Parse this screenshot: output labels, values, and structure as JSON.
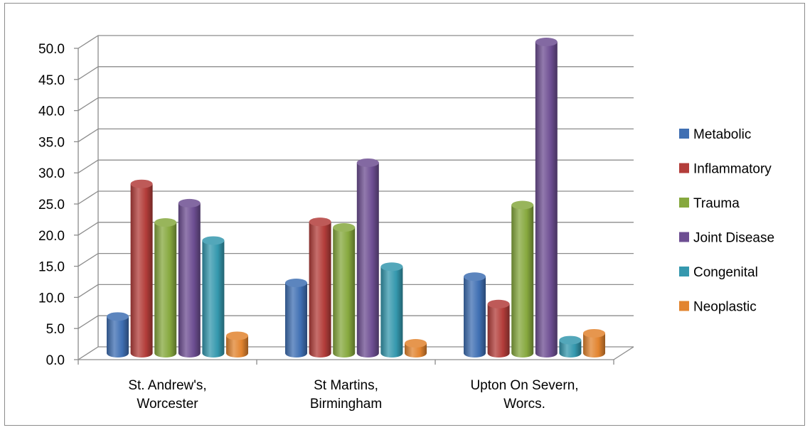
{
  "chart_data": {
    "type": "bar",
    "title": "",
    "xlabel": "",
    "ylabel": "",
    "ylim": [
      0,
      50
    ],
    "y_ticks": [
      "0.0",
      "5.0",
      "10.0",
      "15.0",
      "20.0",
      "25.0",
      "30.0",
      "35.0",
      "40.0",
      "45.0",
      "50.0"
    ],
    "categories": [
      [
        "St. Andrew's,",
        "Worcester"
      ],
      [
        "St Martins,",
        "Birmingham"
      ],
      [
        "Upton On Severn,",
        "Worcs."
      ]
    ],
    "series": [
      {
        "name": "Metabolic",
        "color": "#3f6fb3",
        "values": [
          5.9,
          11.3,
          12.3
        ]
      },
      {
        "name": "Inflammatory",
        "color": "#b33d3a",
        "values": [
          27.2,
          21.1,
          7.9
        ]
      },
      {
        "name": "Trauma",
        "color": "#86a83e",
        "values": [
          21.0,
          20.2,
          23.8
        ]
      },
      {
        "name": "Joint Disease",
        "color": "#6d4e92",
        "values": [
          24.1,
          30.6,
          50.0
        ]
      },
      {
        "name": "Congenital",
        "color": "#3598ae",
        "values": [
          18.1,
          13.9,
          2.1
        ]
      },
      {
        "name": "Neoplastic",
        "color": "#e2842f",
        "values": [
          2.8,
          1.6,
          3.2
        ]
      }
    ],
    "grid": true,
    "legend_position": "right",
    "style": "3d-cylinder"
  }
}
